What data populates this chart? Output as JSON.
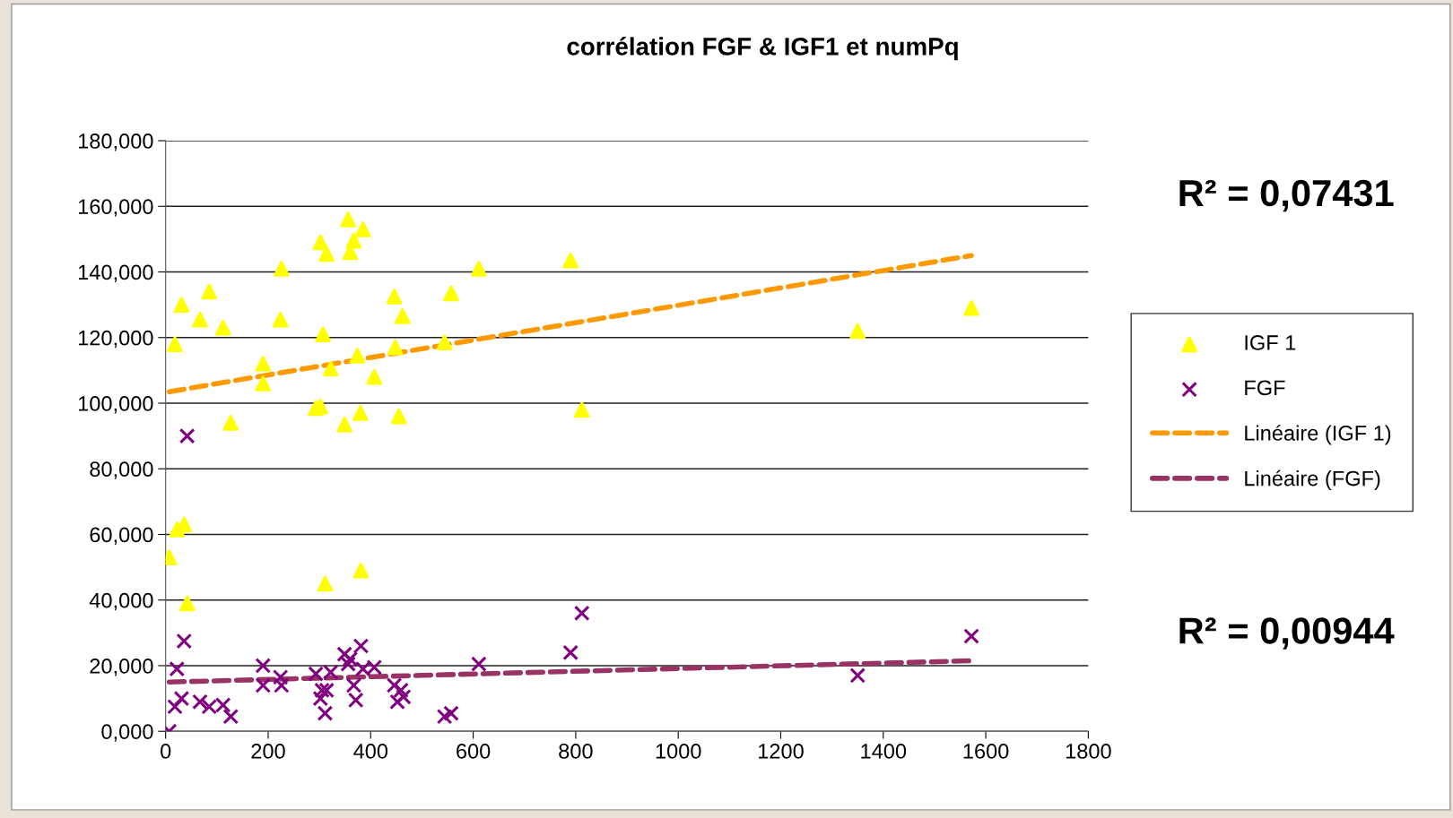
{
  "chart_data": {
    "type": "scatter",
    "title": "corrélation FGF & IGF1 et numPq",
    "xlim": [
      0,
      1800
    ],
    "xticks": [
      0,
      200,
      400,
      600,
      800,
      1000,
      1200,
      1400,
      1600,
      1800
    ],
    "ylim": [
      0,
      180
    ],
    "yticks": [
      {
        "value": 0,
        "label": "0,000"
      },
      {
        "value": 20,
        "label": "20,000"
      },
      {
        "value": 40,
        "label": "40,000"
      },
      {
        "value": 60,
        "label": "60,000"
      },
      {
        "value": 80,
        "label": "80,000"
      },
      {
        "value": 100,
        "label": "100,000"
      },
      {
        "value": 120,
        "label": "120,000"
      },
      {
        "value": 140,
        "label": "140,000"
      },
      {
        "value": 160,
        "label": "160,000"
      },
      {
        "value": 180,
        "label": "180,000"
      }
    ],
    "grid": "y",
    "legend": "right",
    "series": [
      {
        "name": "IGF 1",
        "type": "scatter",
        "marker": "triangle",
        "color": "#ffff00",
        "x": [
          7,
          18,
          31,
          22,
          36,
          42,
          67,
          85,
          112,
          127,
          190,
          190,
          224,
          226,
          293,
          302,
          302,
          307,
          314,
          311,
          322,
          349,
          356,
          360,
          367,
          374,
          380,
          381,
          385,
          407,
          446,
          448,
          455,
          462,
          544,
          557,
          611,
          790,
          812,
          1350,
          1572
        ],
        "values": [
          53,
          118,
          130,
          61.5,
          63,
          39,
          125.5,
          134,
          123,
          94,
          112,
          106,
          125.5,
          141,
          98.5,
          99,
          149,
          121,
          145.5,
          45,
          110.5,
          93.5,
          156,
          146,
          149.5,
          114.5,
          97,
          49,
          153,
          108,
          132.5,
          117,
          96,
          126.5,
          118.5,
          133.5,
          141,
          143.5,
          98,
          122,
          129
        ]
      },
      {
        "name": "FGF",
        "type": "scatter",
        "marker": "cross",
        "color": "#800080",
        "x": [
          7,
          18,
          22,
          31,
          36,
          42,
          67,
          85,
          112,
          127,
          190,
          190,
          224,
          226,
          293,
          302,
          305,
          311,
          314,
          322,
          349,
          356,
          360,
          367,
          371,
          381,
          385,
          407,
          446,
          452,
          459,
          464,
          544,
          557,
          611,
          790,
          812,
          1350,
          1572
        ],
        "values": [
          0,
          7.5,
          19,
          10,
          27.5,
          90,
          9,
          7.5,
          8,
          4.5,
          20,
          14,
          16.5,
          14,
          17.5,
          10,
          12.5,
          5.5,
          12.5,
          18,
          23.5,
          20.5,
          22,
          14,
          9.5,
          26,
          19,
          19.5,
          14,
          9,
          12.5,
          10.5,
          4.5,
          5.5,
          20.5,
          24,
          36,
          17,
          29
        ]
      },
      {
        "name": "Linéaire (IGF 1)",
        "type": "line",
        "line_style": "dashed",
        "color": "#ff9900",
        "x": [
          7,
          1572
        ],
        "values": [
          103.5,
          145
        ]
      },
      {
        "name": "Linéaire (FGF)",
        "type": "line",
        "line_style": "dashed",
        "color": "#993366",
        "x": [
          7,
          1572
        ],
        "values": [
          15,
          21.5
        ]
      }
    ],
    "annotations": [
      "R² = 0,07431",
      "R² = 0,00944"
    ]
  }
}
